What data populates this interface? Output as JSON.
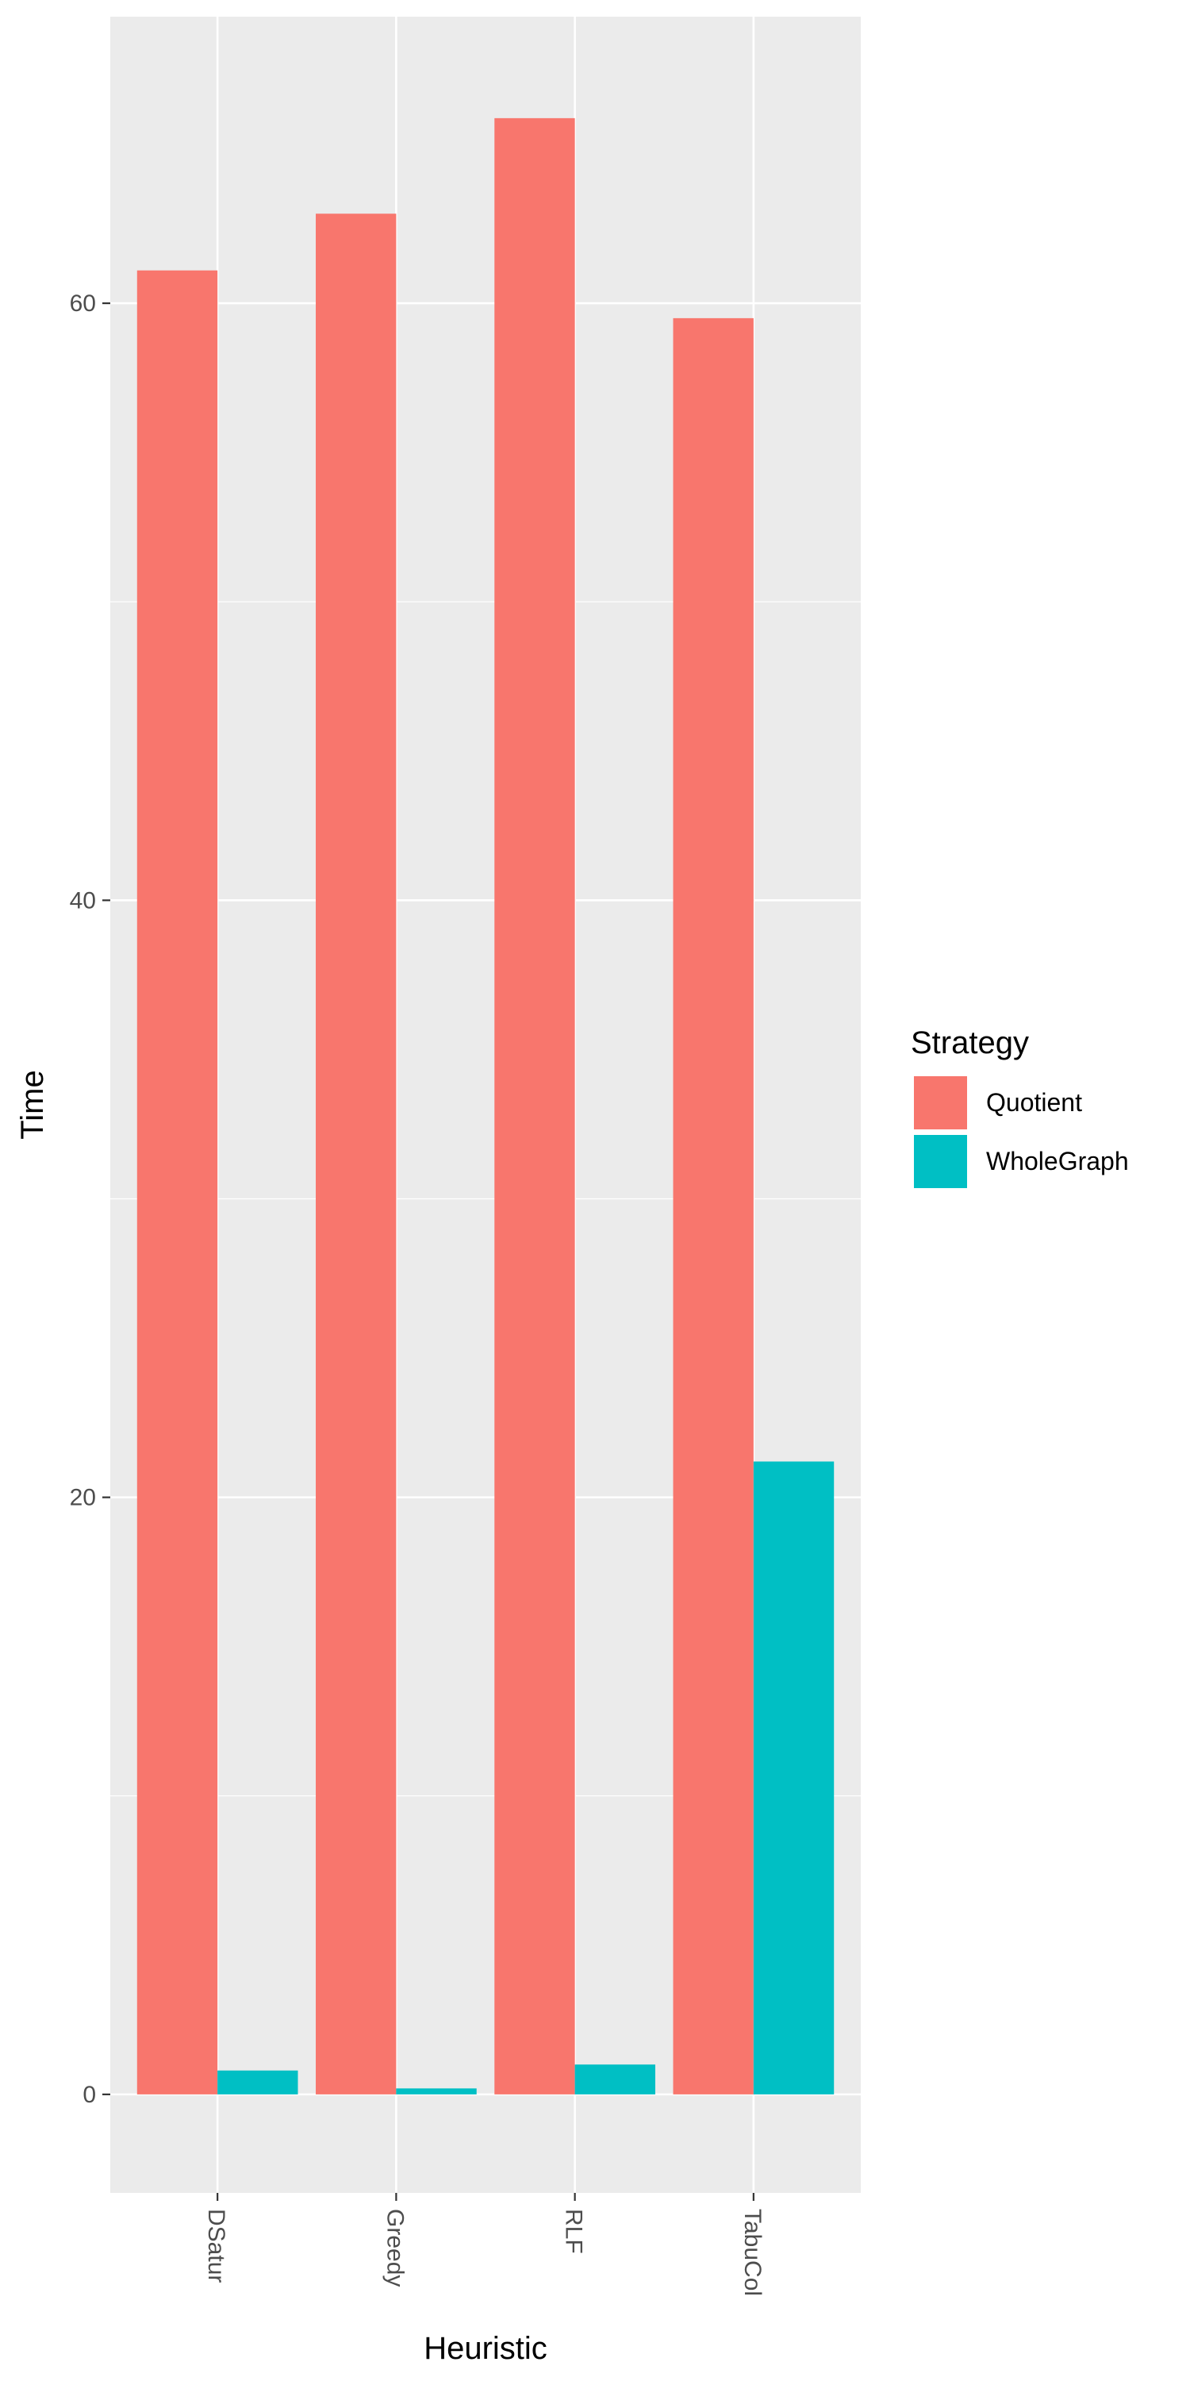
{
  "chart_data": {
    "type": "bar",
    "xlabel": "Heuristic",
    "ylabel": "Time",
    "categories": [
      "DSatur",
      "Greedy",
      "RLF",
      "TabuCol"
    ],
    "series": [
      {
        "name": "Quotient",
        "color": "#F8766D",
        "values": [
          61.1,
          63.0,
          66.2,
          59.5
        ]
      },
      {
        "name": "WholeGraph",
        "color": "#00BFC4",
        "values": [
          0.8,
          0.2,
          1.0,
          21.2
        ]
      }
    ],
    "ylim": [
      -3.3,
      69.6
    ],
    "yticks": [
      0,
      20,
      40,
      60
    ],
    "ytick_labels": [
      "0",
      "20",
      "40",
      "60"
    ],
    "grid": true,
    "panel_background": "#EBEBEB",
    "legend": {
      "title": "Strategy",
      "position": "right"
    }
  }
}
